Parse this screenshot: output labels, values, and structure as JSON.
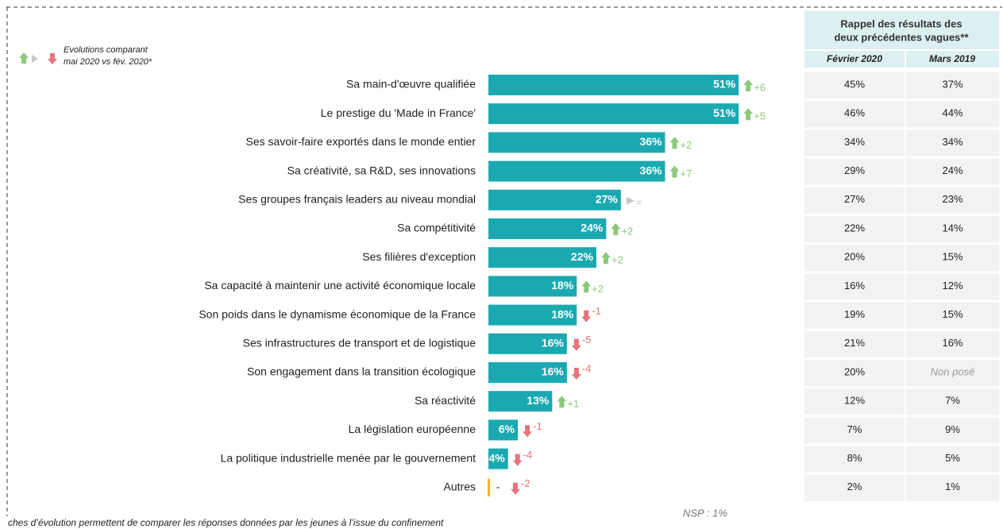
{
  "chart_data": {
    "type": "bar",
    "orientation": "horizontal",
    "legend": [
      "Evolutions comparant",
      "mai 2020 vs fév. 2020*"
    ],
    "categories": [
      "Sa main-d'œuvre qualifiée",
      "Le prestige du 'Made in France'",
      "Ses savoir-faire exportés dans le monde entier",
      "Sa créativité, sa R&D, ses innovations",
      "Ses groupes français leaders au niveau mondial",
      "Sa compétitivité",
      "Ses filières d'exception",
      "Sa capacité à maintenir une activité économique locale",
      "Son poids dans le dynamisme économique de la France",
      "Ses infrastructures de transport et de logistique",
      "Son engagement dans la transition écologique",
      "Sa réactivité",
      "La législation européenne",
      "La politique industrielle menée par le gouvernement",
      "Autres"
    ],
    "values": [
      51,
      51,
      36,
      36,
      27,
      24,
      22,
      18,
      18,
      16,
      16,
      13,
      6,
      4,
      null
    ],
    "value_labels": [
      "51%",
      "51%",
      "36%",
      "36%",
      "27%",
      "24%",
      "22%",
      "18%",
      "18%",
      "16%",
      "16%",
      "13%",
      "6%",
      "4%",
      "-"
    ],
    "color": "#1ba9b1",
    "null_color": "#f5b800",
    "evolution": [
      6,
      5,
      2,
      7,
      0,
      2,
      2,
      2,
      -1,
      -5,
      -4,
      1,
      -1,
      -4,
      -2
    ],
    "evolution_labels": [
      "+6",
      "+5",
      "+2",
      "+7",
      "=",
      "+2",
      "+2",
      "+2",
      "-1",
      "-5",
      "-4",
      "+1",
      "-1",
      "-4",
      "-2"
    ],
    "up_color": "#8cc97a",
    "down_color": "#e8737d",
    "same_color": "#c8c8c8",
    "note": "NSP : 1%",
    "footnote": "ches d’évolution permettent de comparer les réponses données par les jeunes à l’issue du confinement"
  },
  "table": {
    "header": [
      "Rappel des résultats des",
      "deux précédentes vagues**"
    ],
    "columns": [
      "Février 2020",
      "Mars 2019"
    ],
    "rows": [
      [
        "45%",
        "37%"
      ],
      [
        "46%",
        "44%"
      ],
      [
        "34%",
        "34%"
      ],
      [
        "29%",
        "24%"
      ],
      [
        "27%",
        "23%"
      ],
      [
        "22%",
        "14%"
      ],
      [
        "20%",
        "15%"
      ],
      [
        "16%",
        "12%"
      ],
      [
        "19%",
        "15%"
      ],
      [
        "21%",
        "16%"
      ],
      [
        "20%",
        "Non posé"
      ],
      [
        "12%",
        "7%"
      ],
      [
        "7%",
        "9%"
      ],
      [
        "8%",
        "5%"
      ],
      [
        "2%",
        "1%"
      ]
    ]
  }
}
